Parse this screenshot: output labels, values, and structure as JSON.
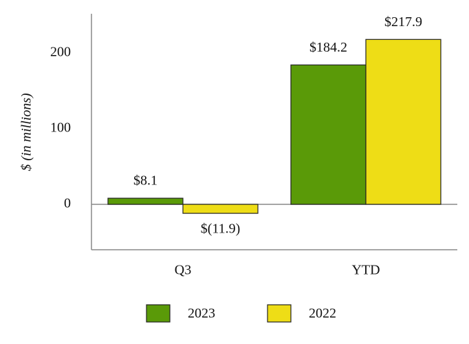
{
  "chart_data": {
    "type": "bar",
    "y_label": "$ (in millions)",
    "categories": [
      "Q3",
      "YTD"
    ],
    "series": [
      {
        "name": "2023",
        "color": "#5a9a08",
        "values": [
          8.1,
          184.2
        ],
        "value_labels": [
          "$8.1",
          "$184.2"
        ]
      },
      {
        "name": "2022",
        "color": "#eedd16",
        "values": [
          -11.9,
          217.9
        ],
        "value_labels": [
          "$(11.9)",
          "$217.9"
        ]
      }
    ],
    "ylim": [
      -60,
      250
    ],
    "yticks": [
      0,
      100,
      200
    ],
    "grid": false,
    "legend": "bottom"
  }
}
